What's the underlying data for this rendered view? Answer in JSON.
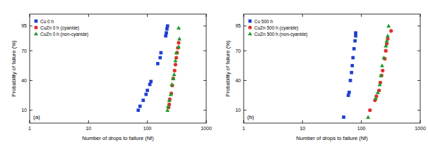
{
  "chart_data": [
    {
      "type": "scatter",
      "x_label": "Number of drops to failure (Nf)",
      "y_label": "Probability of failure (%)",
      "panel_label": "(a)",
      "log": "x",
      "legend": "upper left",
      "grid": false,
      "xlim": [
        1,
        1000
      ],
      "xticks": [
        1,
        10,
        100,
        1000
      ],
      "ylim": [
        -3,
        107
      ],
      "yticks": [
        10,
        40,
        70,
        95
      ],
      "series": [
        {
          "name": "Cu 0 h",
          "color": "#1f3fd0",
          "marker": "square",
          "x": [
            70,
            75,
            85,
            95,
            100,
            110,
            115,
            150,
            165,
            170,
            205,
            210,
            215,
            220
          ],
          "values": [
            10,
            14,
            20,
            26,
            30,
            36,
            39,
            57,
            63,
            68,
            85,
            88,
            92,
            95
          ]
        },
        {
          "name": "CuZn 0 h (cyanide)",
          "color": "#e0302a",
          "marker": "circle",
          "x": [
            230,
            235,
            240,
            255,
            265,
            275,
            290,
            300,
            310,
            320,
            330,
            340
          ],
          "values": [
            13,
            16,
            21,
            27,
            35,
            42,
            50,
            56,
            63,
            68,
            73,
            78
          ]
        },
        {
          "name": "CuZn 0 h (non-cyanide)",
          "color": "#1e9a2a",
          "marker": "triangle",
          "x": [
            220,
            225,
            235,
            250,
            260,
            275,
            285,
            300,
            310,
            340,
            350,
            340
          ],
          "values": [
            10,
            14,
            20,
            26,
            36,
            42,
            46,
            60,
            68,
            74,
            82,
            93
          ]
        }
      ]
    },
    {
      "type": "scatter",
      "x_label": "Number of drops to failure (Nf)",
      "y_label": "Probability of failure (%)",
      "panel_label": "(b)",
      "log": "x",
      "legend": "upper left",
      "grid": false,
      "xlim": [
        1,
        1000
      ],
      "xticks": [
        1,
        10,
        100,
        1000
      ],
      "ylim": [
        -3,
        107
      ],
      "yticks": [
        10,
        40,
        70,
        95
      ],
      "series": [
        {
          "name": "Cu 500 h",
          "color": "#1f3fd0",
          "marker": "square",
          "x": [
            50,
            60,
            62,
            65,
            68,
            70,
            72,
            75,
            78,
            80,
            80
          ],
          "values": [
            3,
            25,
            28,
            40,
            48,
            55,
            63,
            72,
            80,
            85,
            88
          ]
        },
        {
          "name": "CuZn 500 h (cyanide)",
          "color": "#e0302a",
          "marker": "circle",
          "x": [
            140,
            170,
            180,
            200,
            210,
            220,
            230,
            250,
            260,
            270,
            280,
            320
          ],
          "values": [
            10,
            20,
            24,
            30,
            38,
            45,
            50,
            62,
            70,
            77,
            82,
            90
          ]
        },
        {
          "name": "CuZn 500 h (non-cyanide)",
          "color": "#1e9a2a",
          "marker": "triangle",
          "x": [
            130,
            175,
            190,
            205,
            215,
            225,
            240,
            260,
            270,
            280,
            290
          ],
          "values": [
            3,
            22,
            28,
            36,
            45,
            55,
            63,
            75,
            80,
            85,
            95
          ]
        }
      ]
    }
  ]
}
